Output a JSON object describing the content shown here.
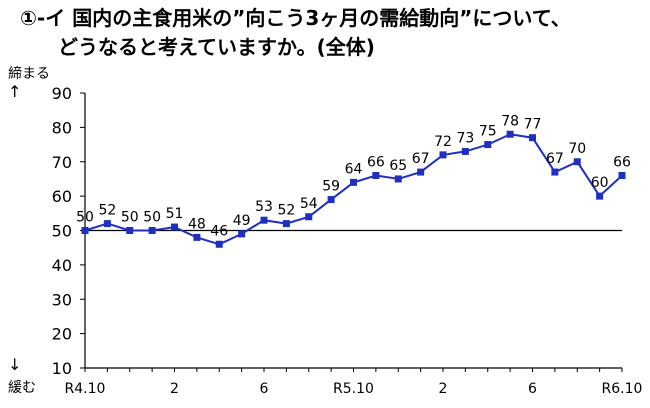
{
  "title": {
    "line1": "①-イ 国内の主食用米の”向こう3ヶ月の需給動向”について、",
    "line2": "どうなると考えていますか。(全体)"
  },
  "side_labels": {
    "top": "締まる",
    "bottom": "緩む",
    "up_arrow": "↑",
    "down_arrow": "↓"
  },
  "chart_data": {
    "type": "line",
    "title": "①-イ 国内の主食用米の”向こう3ヶ月の需給動向”について、どうなると考えていますか。(全体)",
    "xlabel": "",
    "ylabel": "",
    "ylim": [
      10,
      90
    ],
    "yticks": [
      10,
      20,
      30,
      40,
      50,
      60,
      70,
      80,
      90
    ],
    "reference_line": 50,
    "grid": false,
    "series_color": "#1f2fbf",
    "marker": "square",
    "x_tick_labels": [
      {
        "index": 0,
        "label": "R4.10"
      },
      {
        "index": 4,
        "label": "2"
      },
      {
        "index": 8,
        "label": "6"
      },
      {
        "index": 12,
        "label": "R5.10"
      },
      {
        "index": 16,
        "label": "2"
      },
      {
        "index": 20,
        "label": "6"
      },
      {
        "index": 24,
        "label": "R6.10"
      }
    ],
    "series": [
      {
        "values": [
          50,
          52,
          50,
          50,
          51,
          48,
          46,
          49,
          53,
          52,
          54,
          59,
          64,
          66,
          65,
          67,
          72,
          73,
          75,
          78,
          77,
          67,
          70,
          60,
          66
        ]
      }
    ]
  }
}
